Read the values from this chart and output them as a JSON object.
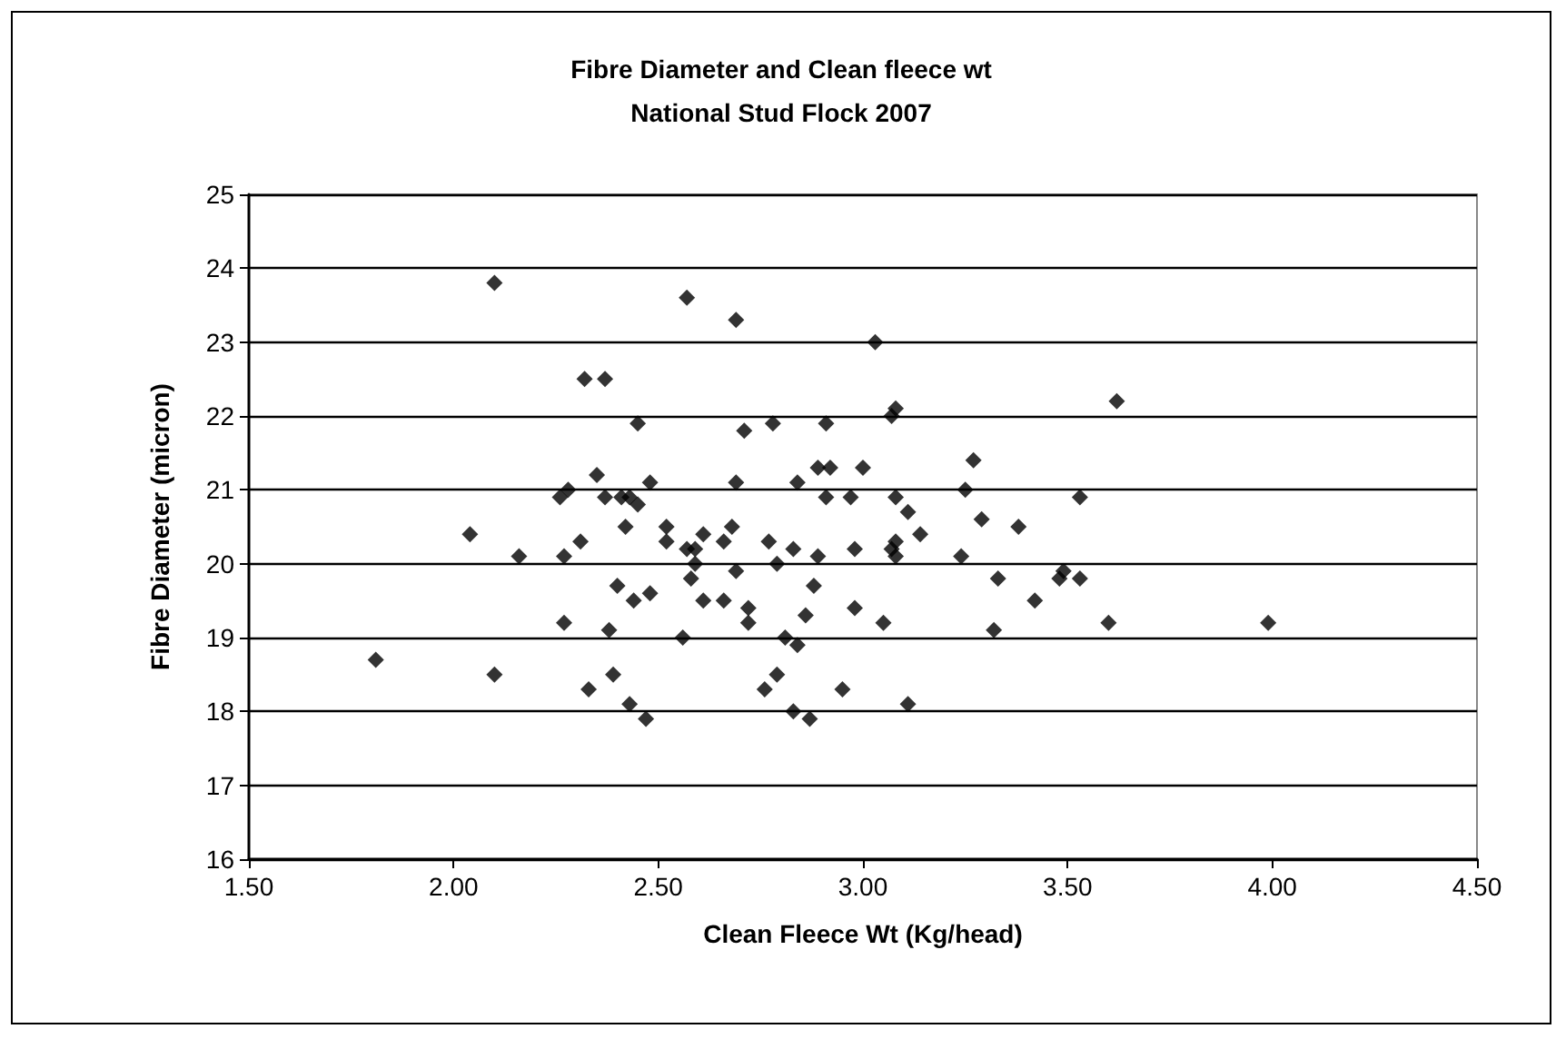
{
  "chart_data": {
    "type": "scatter",
    "title": "Fibre Diameter and Clean fleece wt\nNational Stud Flock 2007",
    "xlabel": "Clean Fleece Wt (Kg/head)",
    "ylabel": "Fibre Diameter (micron)",
    "xlim": [
      1.5,
      4.5
    ],
    "xticks": [
      {
        "value": 1.5,
        "label": "1.50"
      },
      {
        "value": 2,
        "label": "2.00"
      },
      {
        "value": 2.5,
        "label": "2.50"
      },
      {
        "value": 3,
        "label": "3.00"
      },
      {
        "value": 3.5,
        "label": "3.50"
      },
      {
        "value": 4,
        "label": "4.00"
      },
      {
        "value": 4.5,
        "label": "4.50"
      }
    ],
    "ylim": [
      16,
      25
    ],
    "yticks": [
      16,
      17,
      18,
      19,
      20,
      21,
      22,
      23,
      24,
      25
    ],
    "grid": "y",
    "marker": "diamond",
    "series": [
      {
        "color": "#000000",
        "x": [
          2.1,
          2.32,
          2.37,
          2.45,
          2.35,
          2.26,
          2.28,
          2.37,
          2.41,
          2.43,
          2.45,
          2.48,
          2.04,
          2.42,
          2.31,
          2.16,
          2.27,
          2.4,
          2.44,
          2.48,
          2.27,
          2.38,
          1.81,
          2.1,
          2.33,
          2.39,
          2.43,
          2.47,
          2.57,
          2.69,
          3.03,
          2.71,
          2.78,
          2.91,
          3.08,
          3.07,
          2.89,
          2.92,
          3.0,
          3.27,
          2.69,
          2.84,
          3.25,
          2.91,
          2.97,
          3.08,
          3.11,
          3.14,
          3.29,
          3.38,
          2.52,
          2.52,
          2.61,
          2.66,
          2.68,
          2.77,
          2.83,
          2.89,
          2.98,
          3.07,
          3.08,
          3.08,
          3.24,
          2.57,
          2.59,
          2.59,
          2.58,
          2.79,
          2.69,
          2.61,
          2.66,
          2.72,
          2.72,
          2.88,
          2.86,
          2.98,
          3.05,
          3.33,
          3.42,
          3.32,
          2.56,
          2.81,
          2.84,
          2.79,
          2.76,
          2.95,
          2.83,
          2.87,
          3.11,
          3.62,
          3.53,
          3.48,
          3.49,
          3.53,
          3.6,
          3.99
        ],
        "values": [
          23.8,
          22.5,
          22.5,
          21.9,
          21.2,
          20.9,
          21.0,
          20.9,
          20.9,
          20.9,
          20.8,
          21.1,
          20.4,
          20.5,
          20.3,
          20.1,
          20.1,
          19.7,
          19.5,
          19.6,
          19.2,
          19.1,
          18.7,
          18.5,
          18.3,
          18.5,
          18.1,
          17.9,
          23.6,
          23.3,
          23.0,
          21.8,
          21.9,
          21.9,
          22.1,
          22.0,
          21.3,
          21.3,
          21.3,
          21.4,
          21.1,
          21.1,
          21.0,
          20.9,
          20.9,
          20.9,
          20.7,
          20.4,
          20.6,
          20.5,
          20.5,
          20.3,
          20.4,
          20.3,
          20.5,
          20.3,
          20.2,
          20.1,
          20.2,
          20.2,
          20.3,
          20.1,
          20.1,
          20.2,
          20.2,
          20.0,
          19.8,
          20.0,
          19.9,
          19.5,
          19.5,
          19.4,
          19.2,
          19.7,
          19.3,
          19.4,
          19.2,
          19.8,
          19.5,
          19.1,
          19.0,
          19.0,
          18.9,
          18.5,
          18.3,
          18.3,
          18.0,
          17.9,
          18.1,
          22.2,
          20.9,
          19.8,
          19.9,
          19.8,
          19.2,
          19.2
        ]
      }
    ]
  }
}
